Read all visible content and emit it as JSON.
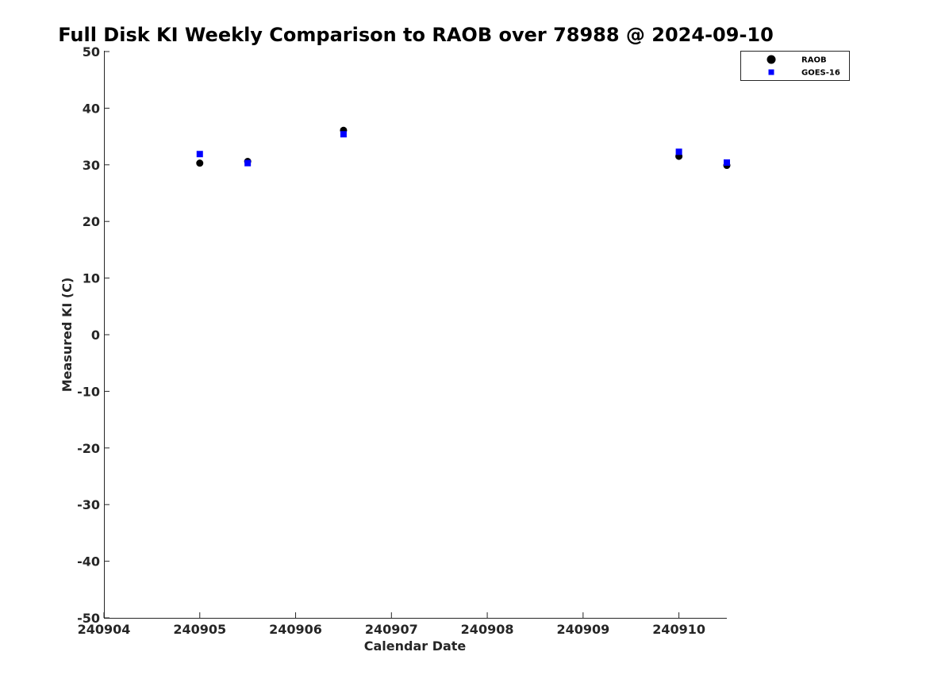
{
  "chart_data": {
    "type": "scatter",
    "title": "Full Disk KI Weekly Comparison to RAOB over 78988 @ 2024-09-10",
    "xlabel": "Calendar Date",
    "ylabel": "Measured KI (C)",
    "xlim": [
      240904,
      240910.5
    ],
    "ylim": [
      -50,
      50
    ],
    "xticks": [
      240904,
      240905,
      240906,
      240907,
      240908,
      240909,
      240910
    ],
    "xtick_labels": [
      "240904",
      "240905",
      "240906",
      "240907",
      "240908",
      "240909",
      "240910"
    ],
    "yticks": [
      50,
      40,
      30,
      20,
      10,
      0,
      -10,
      -20,
      -30,
      -40,
      -50
    ],
    "ytick_labels": [
      "50",
      "40",
      "30",
      "20",
      "10",
      "0",
      "-10",
      "-20",
      "-30",
      "-40",
      "-50"
    ],
    "grid": false,
    "legend_position": "top-right",
    "series": [
      {
        "name": "RAOB",
        "marker": "circle",
        "color": "#000000",
        "x": [
          240905.0,
          240905.5,
          240906.5,
          240910.0,
          240910.5
        ],
        "y": [
          30.3,
          30.6,
          36.1,
          31.5,
          29.9
        ]
      },
      {
        "name": "GOES-16",
        "marker": "square",
        "color": "#0000ff",
        "x": [
          240905.0,
          240905.5,
          240906.5,
          240910.0,
          240910.5
        ],
        "y": [
          31.9,
          30.3,
          35.4,
          32.3,
          30.4
        ]
      }
    ]
  }
}
